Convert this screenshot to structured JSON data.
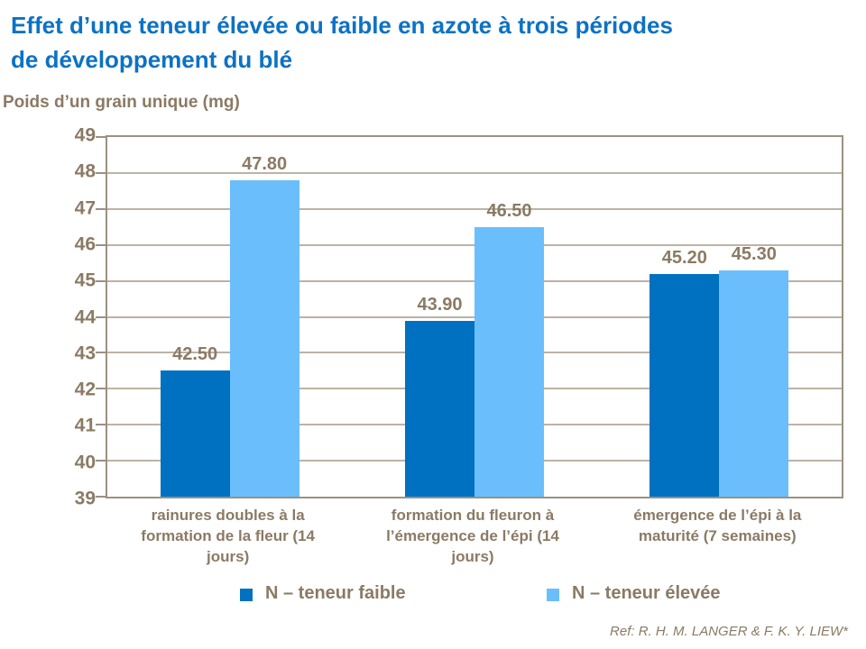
{
  "title_lines": [
    "Effet d’une teneur élevée ou faible en azote à trois périodes",
    "de développement du blé"
  ],
  "y_axis_title": "Poids d’un grain unique (mg)",
  "reference": "Ref: R. H. M. LANGER & F. K. Y. LIEW*",
  "colors": {
    "title_blue": "#0C72C4",
    "series_low": "#0070C0",
    "series_high": "#6ABEFC",
    "text_brown": "#8B7A64",
    "gridline": "#BDB2A6",
    "axis": "#9C9082"
  },
  "chart_data": {
    "type": "bar",
    "title": "Effet d’une teneur élevée ou faible en azote à trois périodes de développement du blé",
    "ylabel": "Poids d’un grain unique (mg)",
    "categories": [
      "rainures doubles à la formation de la fleur (14 jours)",
      "formation du fleuron à l’émergence de l’épi (14 jours)",
      "émergence de l’épi à la maturité (7 semaines)"
    ],
    "series": [
      {
        "name": "N – teneur faible",
        "color_key": "series_low",
        "values": [
          42.5,
          43.9,
          45.2
        ]
      },
      {
        "name": "N – teneur élevée",
        "color_key": "series_high",
        "values": [
          47.8,
          46.5,
          45.3
        ]
      }
    ],
    "ylim": [
      39,
      49
    ],
    "ytick_step": 1,
    "grid": true,
    "legend_position": "bottom",
    "value_label_decimals": 2
  }
}
